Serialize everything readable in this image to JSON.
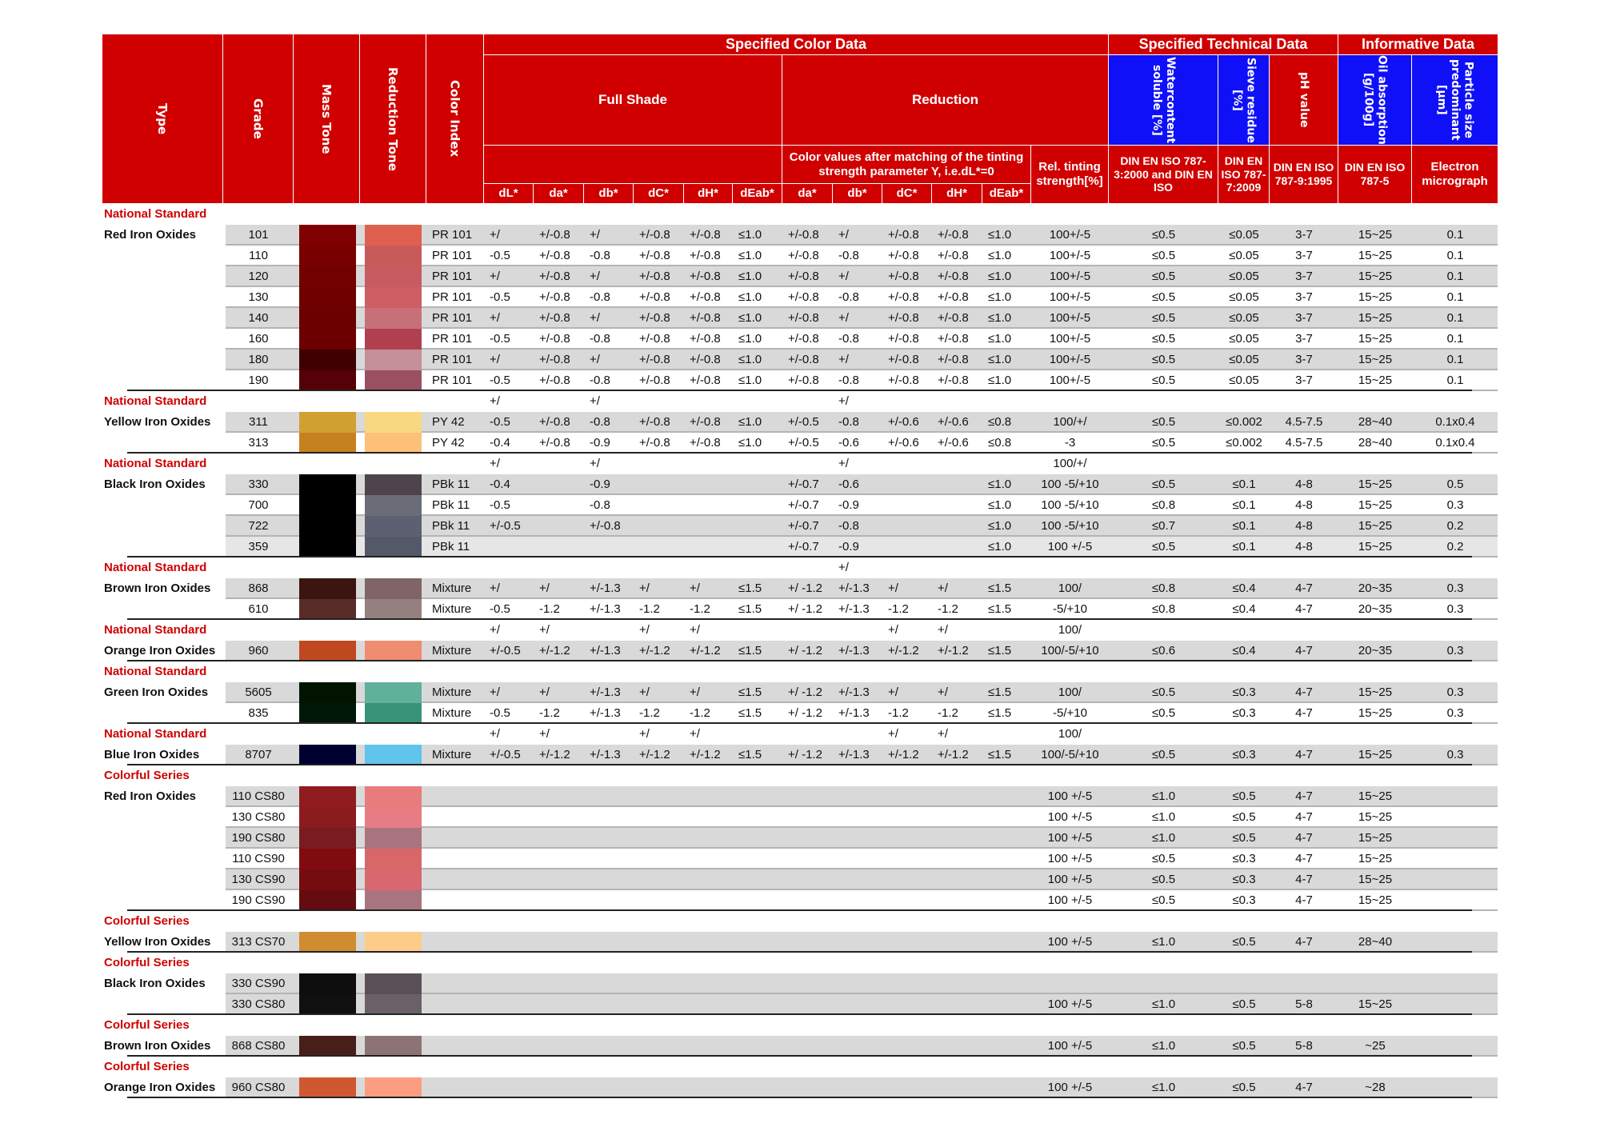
{
  "colors": {
    "header_red": "#d00000",
    "header_blue": "#1010f8",
    "series_text": "#d00000",
    "row_shade": "#d9d9d9"
  },
  "header": {
    "type": "Type",
    "grade": "Grade",
    "mass_tone": "Mass Tone",
    "reduction_tone": "Reduction Tone",
    "color_index": "Color Index",
    "specified_color_data": "Specified Color Data",
    "specified_technical_data": "Specified Technical Data",
    "informative_data": "Informative Data",
    "full_shade": "Full Shade",
    "reduction": "Reduction",
    "reduction_note": "Color values after matching of the tinting strength parameter Y, i.e.dL*=0",
    "rel_tinting": "Rel. tinting strength[%]",
    "water": "Watercontent soluble [%]",
    "sieve": "Sieve residue [%]",
    "ph": "pH value",
    "oil": "Oil absorption [g/100g]",
    "particle": "Particle size predominant [μm]",
    "water_std": "DIN EN ISO 787-3:2000 and DIN EN ISO",
    "sieve_std": "DIN EN ISO 787-7:2009",
    "ph_std": "DIN EN ISO 787-9:1995",
    "oil_std": "DIN EN ISO 787-5",
    "particle_std": "Electron micrograph",
    "full_shade_cols": [
      "dL*",
      "da*",
      "db*",
      "dC*",
      "dH*",
      "dEab*"
    ],
    "reduction_cols": [
      "da*",
      "db*",
      "dC*",
      "dH*",
      "dEab*"
    ]
  },
  "groups": [
    {
      "series": "National Standard",
      "type": "Red Iron Oxides",
      "label_cells": {},
      "items": [
        {
          "grade": "101",
          "mass": "#7f0000",
          "red": "#e06050",
          "ci": "PR 101",
          "fs": [
            "+/",
            "+/-0.8",
            "+/",
            "+/-0.8",
            "+/-0.8",
            "≤1.0"
          ],
          "rd": [
            "+/-0.8",
            "+/",
            "+/-0.8",
            "+/-0.8",
            "≤1.0"
          ],
          "rel": "100+/-5",
          "water": "≤0.5",
          "sieve": "≤0.05",
          "ph": "3-7",
          "oil": "15~25",
          "part": "0.1",
          "shade": "dark"
        },
        {
          "grade": "110",
          "mass": "#780000",
          "red": "#c85a5a",
          "ci": "PR 101",
          "fs": [
            "-0.5",
            "+/-0.8",
            "-0.8",
            "+/-0.8",
            "+/-0.8",
            "≤1.0"
          ],
          "rd": [
            "+/-0.8",
            "-0.8",
            "+/-0.8",
            "+/-0.8",
            "≤1.0"
          ],
          "rel": "100+/-5",
          "water": "≤0.5",
          "sieve": "≤0.05",
          "ph": "3-7",
          "oil": "15~25",
          "part": "0.1",
          "shade": ""
        },
        {
          "grade": "120",
          "mass": "#720000",
          "red": "#c85a62",
          "ci": "PR 101",
          "fs": [
            "+/",
            "+/-0.8",
            "+/",
            "+/-0.8",
            "+/-0.8",
            "≤1.0"
          ],
          "rd": [
            "+/-0.8",
            "+/",
            "+/-0.8",
            "+/-0.8",
            "≤1.0"
          ],
          "rel": "100+/-5",
          "water": "≤0.5",
          "sieve": "≤0.05",
          "ph": "3-7",
          "oil": "15~25",
          "part": "0.1",
          "shade": "dark"
        },
        {
          "grade": "130",
          "mass": "#6e0000",
          "red": "#cc5e64",
          "ci": "PR 101",
          "fs": [
            "-0.5",
            "+/-0.8",
            "-0.8",
            "+/-0.8",
            "+/-0.8",
            "≤1.0"
          ],
          "rd": [
            "+/-0.8",
            "-0.8",
            "+/-0.8",
            "+/-0.8",
            "≤1.0"
          ],
          "rel": "100+/-5",
          "water": "≤0.5",
          "sieve": "≤0.05",
          "ph": "3-7",
          "oil": "15~25",
          "part": "0.1",
          "shade": ""
        },
        {
          "grade": "140",
          "mass": "#6a0000",
          "red": "#c8707a",
          "ci": "PR 101",
          "fs": [
            "+/",
            "+/-0.8",
            "+/",
            "+/-0.8",
            "+/-0.8",
            "≤1.0"
          ],
          "rd": [
            "+/-0.8",
            "+/",
            "+/-0.8",
            "+/-0.8",
            "≤1.0"
          ],
          "rel": "100+/-5",
          "water": "≤0.5",
          "sieve": "≤0.05",
          "ph": "3-7",
          "oil": "15~25",
          "part": "0.1",
          "shade": "dark"
        },
        {
          "grade": "160",
          "mass": "#6c0000",
          "red": "#b04050",
          "ci": "PR 101",
          "fs": [
            "-0.5",
            "+/-0.8",
            "-0.8",
            "+/-0.8",
            "+/-0.8",
            "≤1.0"
          ],
          "rd": [
            "+/-0.8",
            "-0.8",
            "+/-0.8",
            "+/-0.8",
            "≤1.0"
          ],
          "rel": "100+/-5",
          "water": "≤0.5",
          "sieve": "≤0.05",
          "ph": "3-7",
          "oil": "15~25",
          "part": "0.1",
          "shade": ""
        },
        {
          "grade": "180",
          "mass": "#3e0000",
          "red": "#c4909a",
          "ci": "PR 101",
          "fs": [
            "+/",
            "+/-0.8",
            "+/",
            "+/-0.8",
            "+/-0.8",
            "≤1.0"
          ],
          "rd": [
            "+/-0.8",
            "+/",
            "+/-0.8",
            "+/-0.8",
            "≤1.0"
          ],
          "rel": "100+/-5",
          "water": "≤0.5",
          "sieve": "≤0.05",
          "ph": "3-7",
          "oil": "15~25",
          "part": "0.1",
          "shade": "dark"
        },
        {
          "grade": "190",
          "mass": "#560008",
          "red": "#9a5060",
          "ci": "PR 101",
          "fs": [
            "-0.5",
            "+/-0.8",
            "-0.8",
            "+/-0.8",
            "+/-0.8",
            "≤1.0"
          ],
          "rd": [
            "+/-0.8",
            "-0.8",
            "+/-0.8",
            "+/-0.8",
            "≤1.0"
          ],
          "rel": "100+/-5",
          "water": "≤0.5",
          "sieve": "≤0.05",
          "ph": "3-7",
          "oil": "15~25",
          "part": "0.1",
          "shade": ""
        }
      ]
    },
    {
      "series": "National Standard",
      "type": "Yellow Iron Oxides",
      "label_cells": {
        "5": "+/",
        "7": "+/",
        "12": "+/"
      },
      "items": [
        {
          "grade": "311",
          "mass": "#d0a030",
          "red": "#f8d880",
          "ci": "PY 42",
          "fs": [
            "-0.5",
            "+/-0.8",
            "-0.8",
            "+/-0.8",
            "+/-0.8",
            "≤1.0"
          ],
          "rd": [
            "+/-0.5",
            "-0.8",
            "+/-0.6",
            "+/-0.6",
            "≤0.8"
          ],
          "rel": "100/+/",
          "water": "≤0.5",
          "sieve": "≤0.002",
          "ph": "4.5-7.5",
          "oil": "28~40",
          "part": "0.1x0.4",
          "shade": "dark"
        },
        {
          "grade": "313",
          "mass": "#c68020",
          "red": "#fcc078",
          "ci": "PY 42",
          "fs": [
            "-0.4",
            "+/-0.8",
            "-0.9",
            "+/-0.8",
            "+/-0.8",
            "≤1.0"
          ],
          "rd": [
            "+/-0.5",
            "-0.6",
            "+/-0.6",
            "+/-0.6",
            "≤0.8"
          ],
          "rel": "-3",
          "water": "≤0.5",
          "sieve": "≤0.002",
          "ph": "4.5-7.5",
          "oil": "28~40",
          "part": "0.1x0.4",
          "shade": ""
        }
      ]
    },
    {
      "series": "National Standard",
      "type": "Black Iron Oxides",
      "label_cells": {
        "5": "+/",
        "7": "+/",
        "12": "+/",
        "16": "100/+/"
      },
      "items": [
        {
          "grade": "330",
          "mass": "#000000",
          "red": "#50444c",
          "ci": "PBk 11",
          "fs": [
            "-0.4",
            "",
            "-0.9",
            "",
            "",
            ""
          ],
          "rd": [
            "+/-0.7",
            "-0.6",
            "",
            "",
            "≤1.0"
          ],
          "rel": "100 -5/+10",
          "water": "≤0.5",
          "sieve": "≤0.1",
          "ph": "4-8",
          "oil": "15~25",
          "part": "0.5",
          "shade": "dark"
        },
        {
          "grade": "700",
          "mass": "#000000",
          "red": "#6a6c78",
          "ci": "PBk 11",
          "fs": [
            "-0.5",
            "",
            "-0.8",
            "",
            "",
            ""
          ],
          "rd": [
            "+/-0.7",
            "-0.9",
            "",
            "",
            "≤1.0"
          ],
          "rel": "100 -5/+10",
          "water": "≤0.8",
          "sieve": "≤0.1",
          "ph": "4-8",
          "oil": "15~25",
          "part": "0.3",
          "shade": ""
        },
        {
          "grade": "722",
          "mass": "#000000",
          "red": "#5c6070",
          "ci": "PBk 11",
          "fs": [
            "+/-0.5",
            "",
            "+/-0.8",
            "",
            "",
            ""
          ],
          "rd": [
            "+/-0.7",
            "-0.8",
            "",
            "",
            "≤1.0"
          ],
          "rel": "100 -5/+10",
          "water": "≤0.7",
          "sieve": "≤0.1",
          "ph": "4-8",
          "oil": "15~25",
          "part": "0.2",
          "shade": "dark"
        },
        {
          "grade": "359",
          "mass": "#000000",
          "red": "#545868",
          "ci": "PBk 11",
          "fs": [
            "",
            "",
            "",
            "",
            "",
            ""
          ],
          "rd": [
            "+/-0.7",
            "-0.9",
            "",
            "",
            "≤1.0"
          ],
          "rel": "100 +/-5",
          "water": "≤0.5",
          "sieve": "≤0.1",
          "ph": "4-8",
          "oil": "15~25",
          "part": "0.2",
          "shade": "light"
        }
      ]
    },
    {
      "series": "National Standard",
      "type": "Brown Iron Oxides",
      "label_cells": {
        "12": "+/"
      },
      "items": [
        {
          "grade": "868",
          "mass": "#3c1410",
          "red": "#806468",
          "ci": "Mixture",
          "fs": [
            "+/",
            "+/",
            "+/-1.3",
            "+/",
            "+/",
            "≤1.5"
          ],
          "rd": [
            "+/ -1.2",
            "+/-1.3",
            "+/",
            "+/",
            "≤1.5"
          ],
          "rel": "100/",
          "water": "≤0.8",
          "sieve": "≤0.4",
          "ph": "4-7",
          "oil": "20~35",
          "part": "0.3",
          "shade": "dark"
        },
        {
          "grade": "610",
          "mass": "#5a2c28",
          "red": "#94807e",
          "ci": "Mixture",
          "fs": [
            "-0.5",
            "-1.2",
            "+/-1.3",
            "-1.2",
            "-1.2",
            "≤1.5"
          ],
          "rd": [
            "+/ -1.2",
            "+/-1.3",
            "-1.2",
            "-1.2",
            "≤1.5"
          ],
          "rel": "-5/+10",
          "water": "≤0.8",
          "sieve": "≤0.4",
          "ph": "4-7",
          "oil": "20~35",
          "part": "0.3",
          "shade": ""
        }
      ]
    },
    {
      "series": "National   Standard",
      "type": "Orange Iron Oxides",
      "label_cells": {
        "5": "+/",
        "6": "+/",
        "8": "+/",
        "9": "+/",
        "13": "+/",
        "14": "+/",
        "16": "100/"
      },
      "items": [
        {
          "grade": "960",
          "mass": "#c04820",
          "red": "#f08c70",
          "ci": "Mixture",
          "fs": [
            "+/-0.5",
            "+/-1.2",
            "+/-1.3",
            "+/-1.2",
            "+/-1.2",
            "≤1.5"
          ],
          "rd": [
            "+/ -1.2",
            "+/-1.3",
            "+/-1.2",
            "+/-1.2",
            "≤1.5"
          ],
          "rel": "100/-5/+10",
          "water": "≤0.6",
          "sieve": "≤0.4",
          "ph": "4-7",
          "oil": "20~35",
          "part": "0.3",
          "shade": "dark"
        }
      ]
    },
    {
      "series": "National   Standard",
      "type": "Green Iron Oxides",
      "label_cells": {},
      "items": [
        {
          "grade": "5605",
          "mass": "#001400",
          "red": "#60b09a",
          "ci": "Mixture",
          "fs": [
            "+/",
            "+/",
            "+/-1.3",
            "+/",
            "+/",
            "≤1.5"
          ],
          "rd": [
            "+/ -1.2",
            "+/-1.3",
            "+/",
            "+/",
            "≤1.5"
          ],
          "rel": "100/",
          "water": "≤0.5",
          "sieve": "≤0.3",
          "ph": "4-7",
          "oil": "15~25",
          "part": "0.3",
          "shade": "dark"
        },
        {
          "grade": "835",
          "mass": "#001808",
          "red": "#389478",
          "ci": "Mixture",
          "fs": [
            "-0.5",
            "-1.2",
            "+/-1.3",
            "-1.2",
            "-1.2",
            "≤1.5"
          ],
          "rd": [
            "+/ -1.2",
            "+/-1.3",
            "-1.2",
            "-1.2",
            "≤1.5"
          ],
          "rel": "-5/+10",
          "water": "≤0.5",
          "sieve": "≤0.3",
          "ph": "4-7",
          "oil": "15~25",
          "part": "0.3",
          "shade": ""
        }
      ]
    },
    {
      "series": "National Standard",
      "type": "Blue Iron Oxides",
      "label_cells": {
        "5": "+/",
        "6": "+/",
        "8": "+/",
        "9": "+/",
        "13": "+/",
        "14": "+/",
        "16": "100/"
      },
      "items": [
        {
          "grade": "8707",
          "mass": "#000030",
          "red": "#60c4ec",
          "ci": "Mixture",
          "fs": [
            "+/-0.5",
            "+/-1.2",
            "+/-1.3",
            "+/-1.2",
            "+/-1.2",
            "≤1.5"
          ],
          "rd": [
            "+/ -1.2",
            "+/-1.3",
            "+/-1.2",
            "+/-1.2",
            "≤1.5"
          ],
          "rel": "100/-5/+10",
          "water": "≤0.5",
          "sieve": "≤0.3",
          "ph": "4-7",
          "oil": "15~25",
          "part": "0.3",
          "shade": "dark"
        }
      ]
    },
    {
      "series": "Colorful Series",
      "type": "Red Iron Oxides",
      "label_cells": {},
      "items": [
        {
          "grade": "110 CS80",
          "mass": "#901c20",
          "red": "#e87c7c",
          "rel": "100 +/-5",
          "water": "≤1.0",
          "sieve": "≤0.5",
          "ph": "4-7",
          "oil": "15~25",
          "shade": "dark"
        },
        {
          "grade": "130 CS80",
          "mass": "#8a1c20",
          "red": "#e87c84",
          "rel": "100 +/-5",
          "water": "≤1.0",
          "sieve": "≤0.5",
          "ph": "4-7",
          "oil": "15~25",
          "shade": ""
        },
        {
          "grade": "190 CS80",
          "mass": "#781c20",
          "red": "#a87480",
          "rel": "100 +/-5",
          "water": "≤1.0",
          "sieve": "≤0.5",
          "ph": "4-7",
          "oil": "15~25",
          "shade": "dark"
        },
        {
          "grade": "110 CS90",
          "mass": "#800c10",
          "red": "#d86868",
          "rel": "100 +/-5",
          "water": "≤0.5",
          "sieve": "≤0.3",
          "ph": "4-7",
          "oil": "15~25",
          "shade": ""
        },
        {
          "grade": "130 CS90",
          "mass": "#740c10",
          "red": "#d86870",
          "rel": "100 +/-5",
          "water": "≤0.5",
          "sieve": "≤0.3",
          "ph": "4-7",
          "oil": "15~25",
          "shade": "dark"
        },
        {
          "grade": "190 CS90",
          "mass": "#640c10",
          "red": "#a87480",
          "rel": "100 +/-5",
          "water": "≤0.5",
          "sieve": "≤0.3",
          "ph": "4-7",
          "oil": "15~25",
          "shade": ""
        }
      ]
    },
    {
      "series": "Colorful Series",
      "type": "Yellow Iron Oxides",
      "label_cells": {},
      "items": [
        {
          "grade": "313 CS70",
          "mass": "#d08c30",
          "red": "#fdcc88",
          "rel": "100 +/-5",
          "water": "≤1.0",
          "sieve": "≤0.5",
          "ph": "4-7",
          "oil": "28~40",
          "shade": "dark"
        }
      ]
    },
    {
      "series": "Colorful Series",
      "type": "Black Iron Oxides",
      "label_cells": {},
      "items": [
        {
          "grade": "330 CS90",
          "mass": "#0e0e0e",
          "red": "#5c5058",
          "shade": "dark"
        },
        {
          "grade": "330 CS80",
          "mass": "#101010",
          "red": "#6c6068",
          "rel": "100 +/-5",
          "water": "≤1.0",
          "sieve": "≤0.5",
          "ph": "5-8",
          "oil": "15~25",
          "shade": "dark"
        }
      ]
    },
    {
      "series": "Colorful Series",
      "type": "Brown Iron Oxides",
      "label_cells": {},
      "items": [
        {
          "grade": "868 CS80",
          "mass": "#481e18",
          "red": "#8c7476",
          "rel": "100 +/-5",
          "water": "≤1.0",
          "sieve": "≤0.5",
          "ph": "5-8",
          "oil": "~25",
          "shade": "dark"
        }
      ]
    },
    {
      "series": "Colorful Series",
      "type": "Orange Iron Oxides",
      "label_cells": {},
      "items": [
        {
          "grade": "960 CS80",
          "mass": "#d05830",
          "red": "#fc9c80",
          "rel": "100 +/-5",
          "water": "≤1.0",
          "sieve": "≤0.5",
          "ph": "4-7",
          "oil": "~28",
          "shade": "dark"
        }
      ]
    }
  ]
}
